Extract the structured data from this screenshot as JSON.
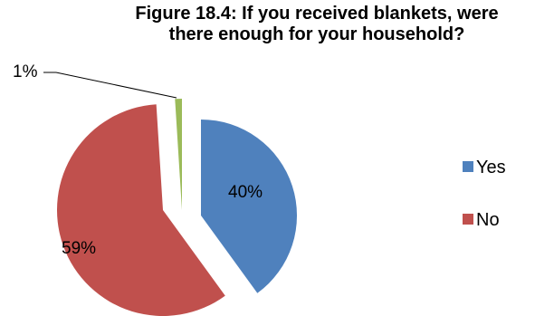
{
  "chart_data": {
    "type": "pie",
    "title_lines": [
      "Figure 18.4: If you received blankets, were",
      "there enough for your household?"
    ],
    "categories": [
      "Yes",
      "No",
      ""
    ],
    "values": [
      40,
      59,
      1
    ],
    "labels": [
      "40%",
      "59%",
      "1%"
    ],
    "colors": [
      "#4F81BD",
      "#C0504D",
      "#9BBB59"
    ],
    "legend_position": "right",
    "legend": [
      {
        "label": "Yes",
        "color": "#4F81BD"
      },
      {
        "label": "No",
        "color": "#C0504D"
      }
    ]
  }
}
